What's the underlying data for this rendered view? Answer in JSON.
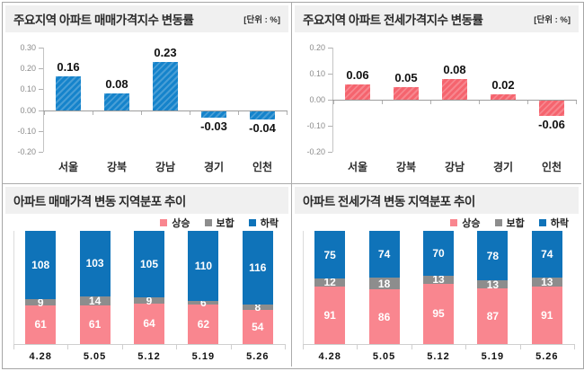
{
  "colors": {
    "panel_border": "#ababab",
    "titlebar_bg": "#f0f0f0",
    "sale_bar_blue": "#1583cb",
    "jeonse_bar_red": "#f5646e",
    "stack_rise_pink": "#f9868f",
    "stack_flat_gray": "#8d8d8d",
    "stack_fall_blue": "#0f73b9",
    "zero_line": "#9c9c9c",
    "axis_line": "#c4c4c4"
  },
  "chart_data": [
    {
      "type": "bar",
      "title": "주요지역 아파트 매매가격지수 변동률",
      "unit_label": "[단위 : %]",
      "categories": [
        "서울",
        "강북",
        "강남",
        "경기",
        "인천"
      ],
      "values": [
        0.16,
        0.08,
        0.23,
        -0.03,
        -0.04
      ],
      "value_labels": [
        "0.16",
        "0.08",
        "0.23",
        "-0.03",
        "-0.04"
      ],
      "ylim": [
        -0.2,
        0.3
      ],
      "yticks": [
        0.3,
        0.2,
        0.1,
        0.0,
        -0.1,
        -0.2
      ],
      "bar_color": "#1583cb",
      "hatch": true,
      "grid": false,
      "legend_position": "none"
    },
    {
      "type": "bar",
      "title": "주요지역 아파트 전세가격지수 변동률",
      "unit_label": "[단위 : %]",
      "categories": [
        "서울",
        "강북",
        "강남",
        "경기",
        "인천"
      ],
      "values": [
        0.06,
        0.05,
        0.08,
        0.02,
        -0.06
      ],
      "value_labels": [
        "0.06",
        "0.05",
        "0.08",
        "0.02",
        "-0.06"
      ],
      "ylim": [
        -0.2,
        0.2
      ],
      "yticks": [
        0.2,
        0.1,
        0.0,
        -0.1,
        -0.2
      ],
      "bar_color": "#f5646e",
      "hatch": true,
      "grid": false,
      "legend_position": "none"
    },
    {
      "type": "stacked-bar",
      "title": "아파트 매매가격 변동 지역분포 추이",
      "categories": [
        "4.28",
        "5.05",
        "5.12",
        "5.19",
        "5.26"
      ],
      "series": [
        {
          "name": "상승",
          "color": "#f9868f",
          "values": [
            61,
            61,
            64,
            62,
            54
          ]
        },
        {
          "name": "보합",
          "color": "#8d8d8d",
          "values": [
            9,
            14,
            9,
            6,
            8
          ]
        },
        {
          "name": "하락",
          "color": "#0f73b9",
          "values": [
            108,
            103,
            105,
            110,
            116
          ]
        }
      ],
      "legend": [
        "상승",
        "보합",
        "하락"
      ],
      "legend_position": "top-right"
    },
    {
      "type": "stacked-bar",
      "title": "아파트 전세가격 변동 지역분포 추이",
      "categories": [
        "4.28",
        "5.05",
        "5.12",
        "5.19",
        "5.26"
      ],
      "series": [
        {
          "name": "상승",
          "color": "#f9868f",
          "values": [
            91,
            86,
            95,
            87,
            91
          ]
        },
        {
          "name": "보합",
          "color": "#8d8d8d",
          "values": [
            12,
            18,
            13,
            13,
            13
          ]
        },
        {
          "name": "하락",
          "color": "#0f73b9",
          "values": [
            75,
            74,
            70,
            78,
            74
          ]
        }
      ],
      "legend": [
        "상승",
        "보합",
        "하락"
      ],
      "legend_position": "top-right"
    }
  ]
}
